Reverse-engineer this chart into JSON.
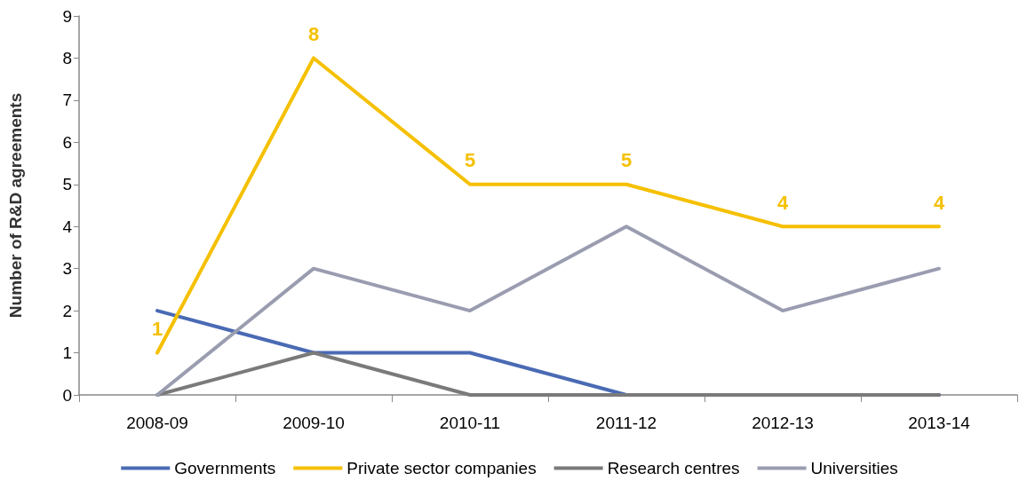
{
  "chart_data": {
    "type": "line",
    "ylabel": "Number of R&D agreements",
    "categories": [
      "2008-09",
      "2009-10",
      "2010-11",
      "2011-12",
      "2012-13",
      "2013-14"
    ],
    "series": [
      {
        "name": "Governments",
        "color": "#4a6ab4",
        "values": [
          2,
          1,
          1,
          0,
          0,
          0
        ]
      },
      {
        "name": "Private sector companies",
        "color": "#f5c000",
        "values": [
          1,
          8,
          5,
          5,
          4,
          4
        ],
        "value_labels": [
          "1",
          "8",
          "5",
          "5",
          "4",
          "4"
        ]
      },
      {
        "name": "Research centres",
        "color": "#7a7a7a",
        "values": [
          0,
          1,
          0,
          0,
          0,
          0
        ]
      },
      {
        "name": "Universities",
        "color": "#9a9db0",
        "values": [
          0,
          3,
          2,
          4,
          2,
          3
        ]
      }
    ],
    "ylim": [
      0,
      9
    ],
    "yticks": [
      0,
      1,
      2,
      3,
      4,
      5,
      6,
      7,
      8,
      9
    ],
    "grid": false,
    "legend": "bottom",
    "marker": "none",
    "line_style": "solid"
  }
}
